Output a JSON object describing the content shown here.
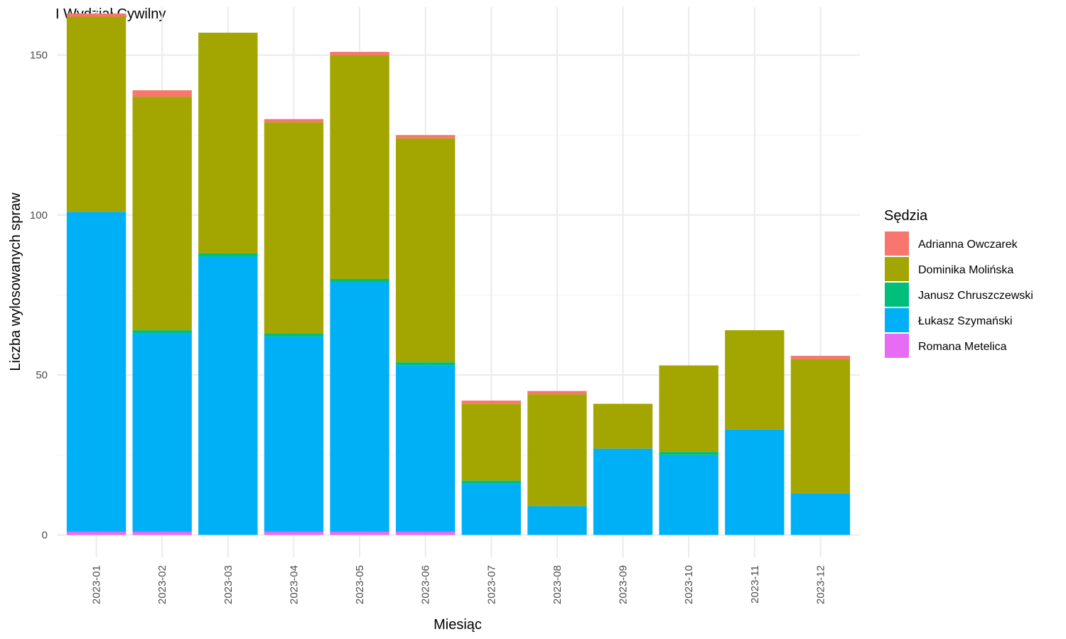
{
  "chart_data": {
    "type": "bar",
    "stacked": true,
    "title": "I Wydział Cywilny",
    "xlabel": "Miesiąc",
    "ylabel": "Liczba wylosowanych spraw",
    "ylim": [
      -7,
      165
    ],
    "yticks": [
      0,
      50,
      100,
      150
    ],
    "grid": true,
    "legend_position": "right",
    "legend_title": "Sędzia",
    "categories": [
      "2023-01",
      "2023-02",
      "2023-03",
      "2023-04",
      "2023-05",
      "2023-06",
      "2023-07",
      "2023-08",
      "2023-09",
      "2023-10",
      "2023-11",
      "2023-12"
    ],
    "stack_order": [
      "Romana Metelica",
      "Łukasz Szymański",
      "Janusz Chruszczewski",
      "Dominika Molińska",
      "Adrianna Owczarek"
    ],
    "series": [
      {
        "name": "Adrianna Owczarek",
        "color": "#F8766D",
        "values": [
          1,
          2,
          0,
          1,
          1,
          1,
          1,
          1,
          0,
          0,
          0,
          1
        ]
      },
      {
        "name": "Dominika Molińska",
        "color": "#A3A500",
        "values": [
          61,
          73,
          69,
          66,
          70,
          70,
          24,
          35,
          14,
          27,
          31,
          42
        ]
      },
      {
        "name": "Janusz Chruszczewski",
        "color": "#00BF7D",
        "values": [
          0,
          1,
          1,
          1,
          1,
          1,
          1,
          0,
          0,
          1,
          0,
          0
        ]
      },
      {
        "name": "Łukasz Szymański",
        "color": "#00B0F6",
        "values": [
          100,
          62,
          87,
          61,
          78,
          52,
          16,
          9,
          27,
          25,
          33,
          13
        ]
      },
      {
        "name": "Romana Metelica",
        "color": "#E76BF3",
        "values": [
          1,
          1,
          0,
          1,
          1,
          1,
          0,
          0,
          0,
          0,
          0,
          0
        ]
      }
    ]
  }
}
